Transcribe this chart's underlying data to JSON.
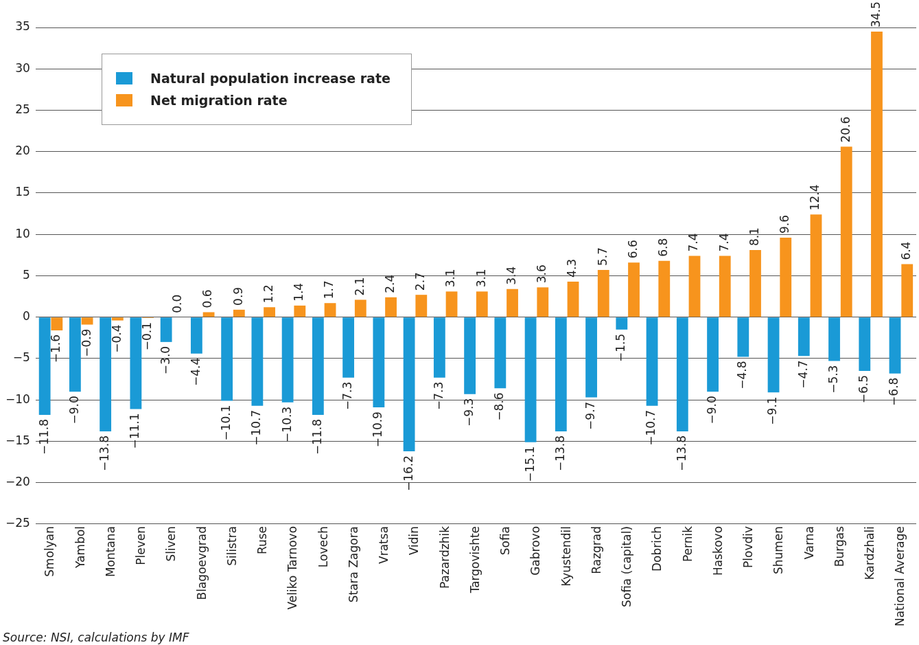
{
  "chart_data": {
    "type": "bar",
    "categories": [
      "Smolyan",
      "Yambol",
      "Montana",
      "Pleven",
      "Sliven",
      "Blagoevgrad",
      "Silistra",
      "Ruse",
      "Veliko Tarnovo",
      "Lovech",
      "Stara Zagora",
      "Vratsa",
      "Vidin",
      "Pazardzhik",
      "Targovishte",
      "Sofia",
      "Gabrovo",
      "Kyustendil",
      "Razgrad",
      "Sofia (capital)",
      "Dobrich",
      "Pernik",
      "Haskovo",
      "Plovdiv",
      "Shumen",
      "Varna",
      "Burgas",
      "Kardzhali",
      "National Average"
    ],
    "series": [
      {
        "name": "Natural population increase rate",
        "color": "#1a9ad6",
        "values": [
          -11.8,
          -9.0,
          -13.8,
          -11.1,
          -3.0,
          -4.4,
          -10.1,
          -10.7,
          -10.3,
          -11.8,
          -7.3,
          -10.9,
          -16.2,
          -7.3,
          -9.3,
          -8.6,
          -15.1,
          -13.8,
          -9.7,
          -1.5,
          -10.7,
          -13.8,
          -9.0,
          -4.8,
          -9.1,
          -4.7,
          -5.3,
          -6.5,
          -6.8
        ],
        "value_labels": [
          "−11.8",
          "−9.0",
          "−13.8",
          "−11.1",
          "−3.0",
          "−4.4",
          "−10.1",
          "−10.7",
          "−10.3",
          "−11.8",
          "−7.3",
          "−10.9",
          "−16.2",
          "−7.3",
          "−9.3",
          "−8.6",
          "−15.1",
          "−13.8",
          "−9.7",
          "−1.5",
          "−10.7",
          "−13.8",
          "−9.0",
          "−4.8",
          "−9.1",
          "−4.7",
          "−5.3",
          "−6.5",
          "−6.8"
        ]
      },
      {
        "name": "Net migration rate",
        "color": "#f7941d",
        "values": [
          -1.6,
          -0.9,
          -0.4,
          -0.1,
          0.0,
          0.6,
          0.9,
          1.2,
          1.4,
          1.7,
          2.1,
          2.4,
          2.7,
          3.1,
          3.1,
          3.4,
          3.6,
          4.3,
          5.7,
          6.6,
          6.8,
          7.4,
          7.4,
          8.1,
          9.6,
          12.4,
          20.6,
          34.5,
          6.4
        ],
        "value_labels": [
          "−1.6",
          "−0.9",
          "−0.4",
          "−0.1",
          "0.0",
          "0.6",
          "0.9",
          "1.2",
          "1.4",
          "1.7",
          "2.1",
          "2.4",
          "2.7",
          "3.1",
          "3.1",
          "3.4",
          "3.6",
          "4.3",
          "5.7",
          "6.6",
          "6.8",
          "7.4",
          "7.4",
          "8.1",
          "9.6",
          "12.4",
          "20.6",
          "34.5",
          "6.4"
        ]
      }
    ],
    "ylim": [
      -25,
      35
    ],
    "yticks": [
      {
        "value": -25,
        "label": "−25"
      },
      {
        "value": -20,
        "label": "−20"
      },
      {
        "value": -15,
        "label": "−15"
      },
      {
        "value": -10,
        "label": "−10"
      },
      {
        "value": -5,
        "label": "−5"
      },
      0,
      5,
      10,
      15,
      20,
      25,
      30,
      35
    ],
    "grid": "y",
    "legend": "top left",
    "annotations": [
      "Source: NSI, calculations by IMF"
    ]
  }
}
